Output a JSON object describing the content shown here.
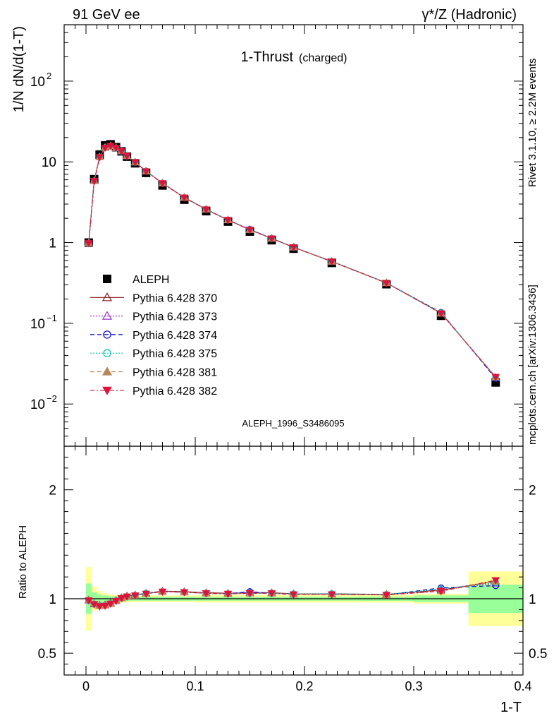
{
  "header": {
    "left": "91 GeV ee",
    "right": "γ*/Z (Hadronic)"
  },
  "side": {
    "rivet": "Rivet 3.1.10, ≥ 2.2M events",
    "source": "mcplots.cern.ch [arXiv:1306.3436]"
  },
  "chart_data": {
    "type": "line",
    "title": "1-Thrust",
    "subtitle": "(charged)",
    "watermark": "ALEPH_1996_S3486095",
    "xlabel": "1-T",
    "ylabel": "1/N dN/d(1-T)",
    "ratio_ylabel": "Ratio to ALEPH",
    "xlim": [
      -0.02,
      0.4
    ],
    "ylim": [
      0.003,
      500
    ],
    "yscale": "log",
    "ratio_ylim": [
      0.3,
      2.4
    ],
    "legend_position": "middle-left",
    "x_ticks": [
      "0",
      "0.1",
      "0.2",
      "0.3",
      "0.4"
    ],
    "x_tick_values": [
      0,
      0.1,
      0.2,
      0.3,
      0.4
    ],
    "y_ticks": [
      {
        "value": 0.01,
        "base": "10",
        "exp": "−2"
      },
      {
        "value": 0.1,
        "base": "10",
        "exp": "−1"
      },
      {
        "value": 1,
        "base": "1",
        "exp": ""
      },
      {
        "value": 10,
        "base": "10",
        "exp": ""
      },
      {
        "value": 100,
        "base": "10",
        "exp": "2"
      }
    ],
    "ratio_ticks": [
      {
        "value": 0.5,
        "label": "0.5"
      },
      {
        "value": 1,
        "label": "1"
      },
      {
        "value": 2,
        "label": "2"
      }
    ],
    "x": [
      0.0025,
      0.0075,
      0.0125,
      0.0175,
      0.0225,
      0.0275,
      0.0325,
      0.0375,
      0.045,
      0.055,
      0.07,
      0.09,
      0.11,
      0.13,
      0.15,
      0.17,
      0.19,
      0.225,
      0.275,
      0.325,
      0.375
    ],
    "bin_edges": [
      0,
      0.005,
      0.01,
      0.015,
      0.02,
      0.025,
      0.03,
      0.035,
      0.04,
      0.05,
      0.06,
      0.08,
      0.1,
      0.12,
      0.14,
      0.16,
      0.18,
      0.2,
      0.25,
      0.3,
      0.35,
      0.4
    ],
    "data": {
      "name": "ALEPH",
      "color": "#000000",
      "values": [
        1.0,
        6.1,
        12.3,
        16.0,
        16.5,
        15.2,
        13.5,
        11.6,
        9.6,
        7.3,
        5.1,
        3.4,
        2.45,
        1.82,
        1.37,
        1.07,
        0.84,
        0.56,
        0.305,
        0.124,
        0.0185
      ]
    },
    "ratio_band_inner": [
      0.14,
      0.06,
      0.04,
      0.03,
      0.025,
      0.02,
      0.02,
      0.02,
      0.018,
      0.018,
      0.018,
      0.018,
      0.018,
      0.018,
      0.018,
      0.018,
      0.018,
      0.018,
      0.02,
      0.03,
      0.13
    ],
    "ratio_band_outer": [
      0.29,
      0.11,
      0.07,
      0.05,
      0.04,
      0.035,
      0.035,
      0.035,
      0.03,
      0.03,
      0.03,
      0.03,
      0.035,
      0.035,
      0.035,
      0.035,
      0.035,
      0.035,
      0.035,
      0.045,
      0.25
    ],
    "series": [
      {
        "name": "Pythia 6.428 370",
        "color": "#8b1a1a",
        "dash": "",
        "marker": "triangle-open",
        "ratio": [
          0.99,
          0.955,
          0.94,
          0.945,
          0.96,
          0.985,
          1.01,
          1.025,
          1.035,
          1.05,
          1.07,
          1.065,
          1.055,
          1.05,
          1.055,
          1.055,
          1.045,
          1.045,
          1.04,
          1.08,
          1.16
        ]
      },
      {
        "name": "Pythia 6.428 373",
        "color": "#9932cc",
        "dash": "2,2",
        "marker": "triangle-open",
        "ratio": [
          0.985,
          0.95,
          0.935,
          0.94,
          0.955,
          0.98,
          1.005,
          1.02,
          1.03,
          1.05,
          1.065,
          1.06,
          1.05,
          1.045,
          1.06,
          1.05,
          1.04,
          1.04,
          1.035,
          1.09,
          1.14
        ]
      },
      {
        "name": "Pythia 6.428 374",
        "color": "#0000cd",
        "dash": "6,4",
        "marker": "circle-open",
        "ratio": [
          0.985,
          0.95,
          0.935,
          0.94,
          0.955,
          0.98,
          1.005,
          1.02,
          1.03,
          1.05,
          1.065,
          1.06,
          1.05,
          1.045,
          1.065,
          1.05,
          1.04,
          1.045,
          1.035,
          1.1,
          1.12
        ]
      },
      {
        "name": "Pythia 6.428 375",
        "color": "#00c8b4",
        "dash": "2,2",
        "marker": "circle-open",
        "ratio": [
          0.985,
          0.95,
          0.935,
          0.94,
          0.955,
          0.98,
          1.005,
          1.02,
          1.03,
          1.05,
          1.065,
          1.06,
          1.05,
          1.045,
          1.05,
          1.05,
          1.045,
          1.045,
          1.04,
          1.09,
          1.15
        ]
      },
      {
        "name": "Pythia 6.428 381",
        "color": "#b8865a",
        "dash": "6,4",
        "marker": "triangle-filled",
        "ratio": [
          0.99,
          0.955,
          0.935,
          0.94,
          0.955,
          0.98,
          1.005,
          1.02,
          1.03,
          1.045,
          1.065,
          1.06,
          1.05,
          1.045,
          1.05,
          1.05,
          1.04,
          1.04,
          1.035,
          1.07,
          1.16
        ]
      },
      {
        "name": "Pythia 6.428 382",
        "color": "#dc143c",
        "dash": "6,3,2,3",
        "marker": "triangle-down-filled",
        "ratio": [
          0.985,
          0.95,
          0.93,
          0.935,
          0.955,
          0.98,
          1.005,
          1.02,
          1.03,
          1.045,
          1.065,
          1.06,
          1.05,
          1.045,
          1.05,
          1.05,
          1.04,
          1.04,
          1.035,
          1.07,
          1.17
        ]
      }
    ]
  }
}
